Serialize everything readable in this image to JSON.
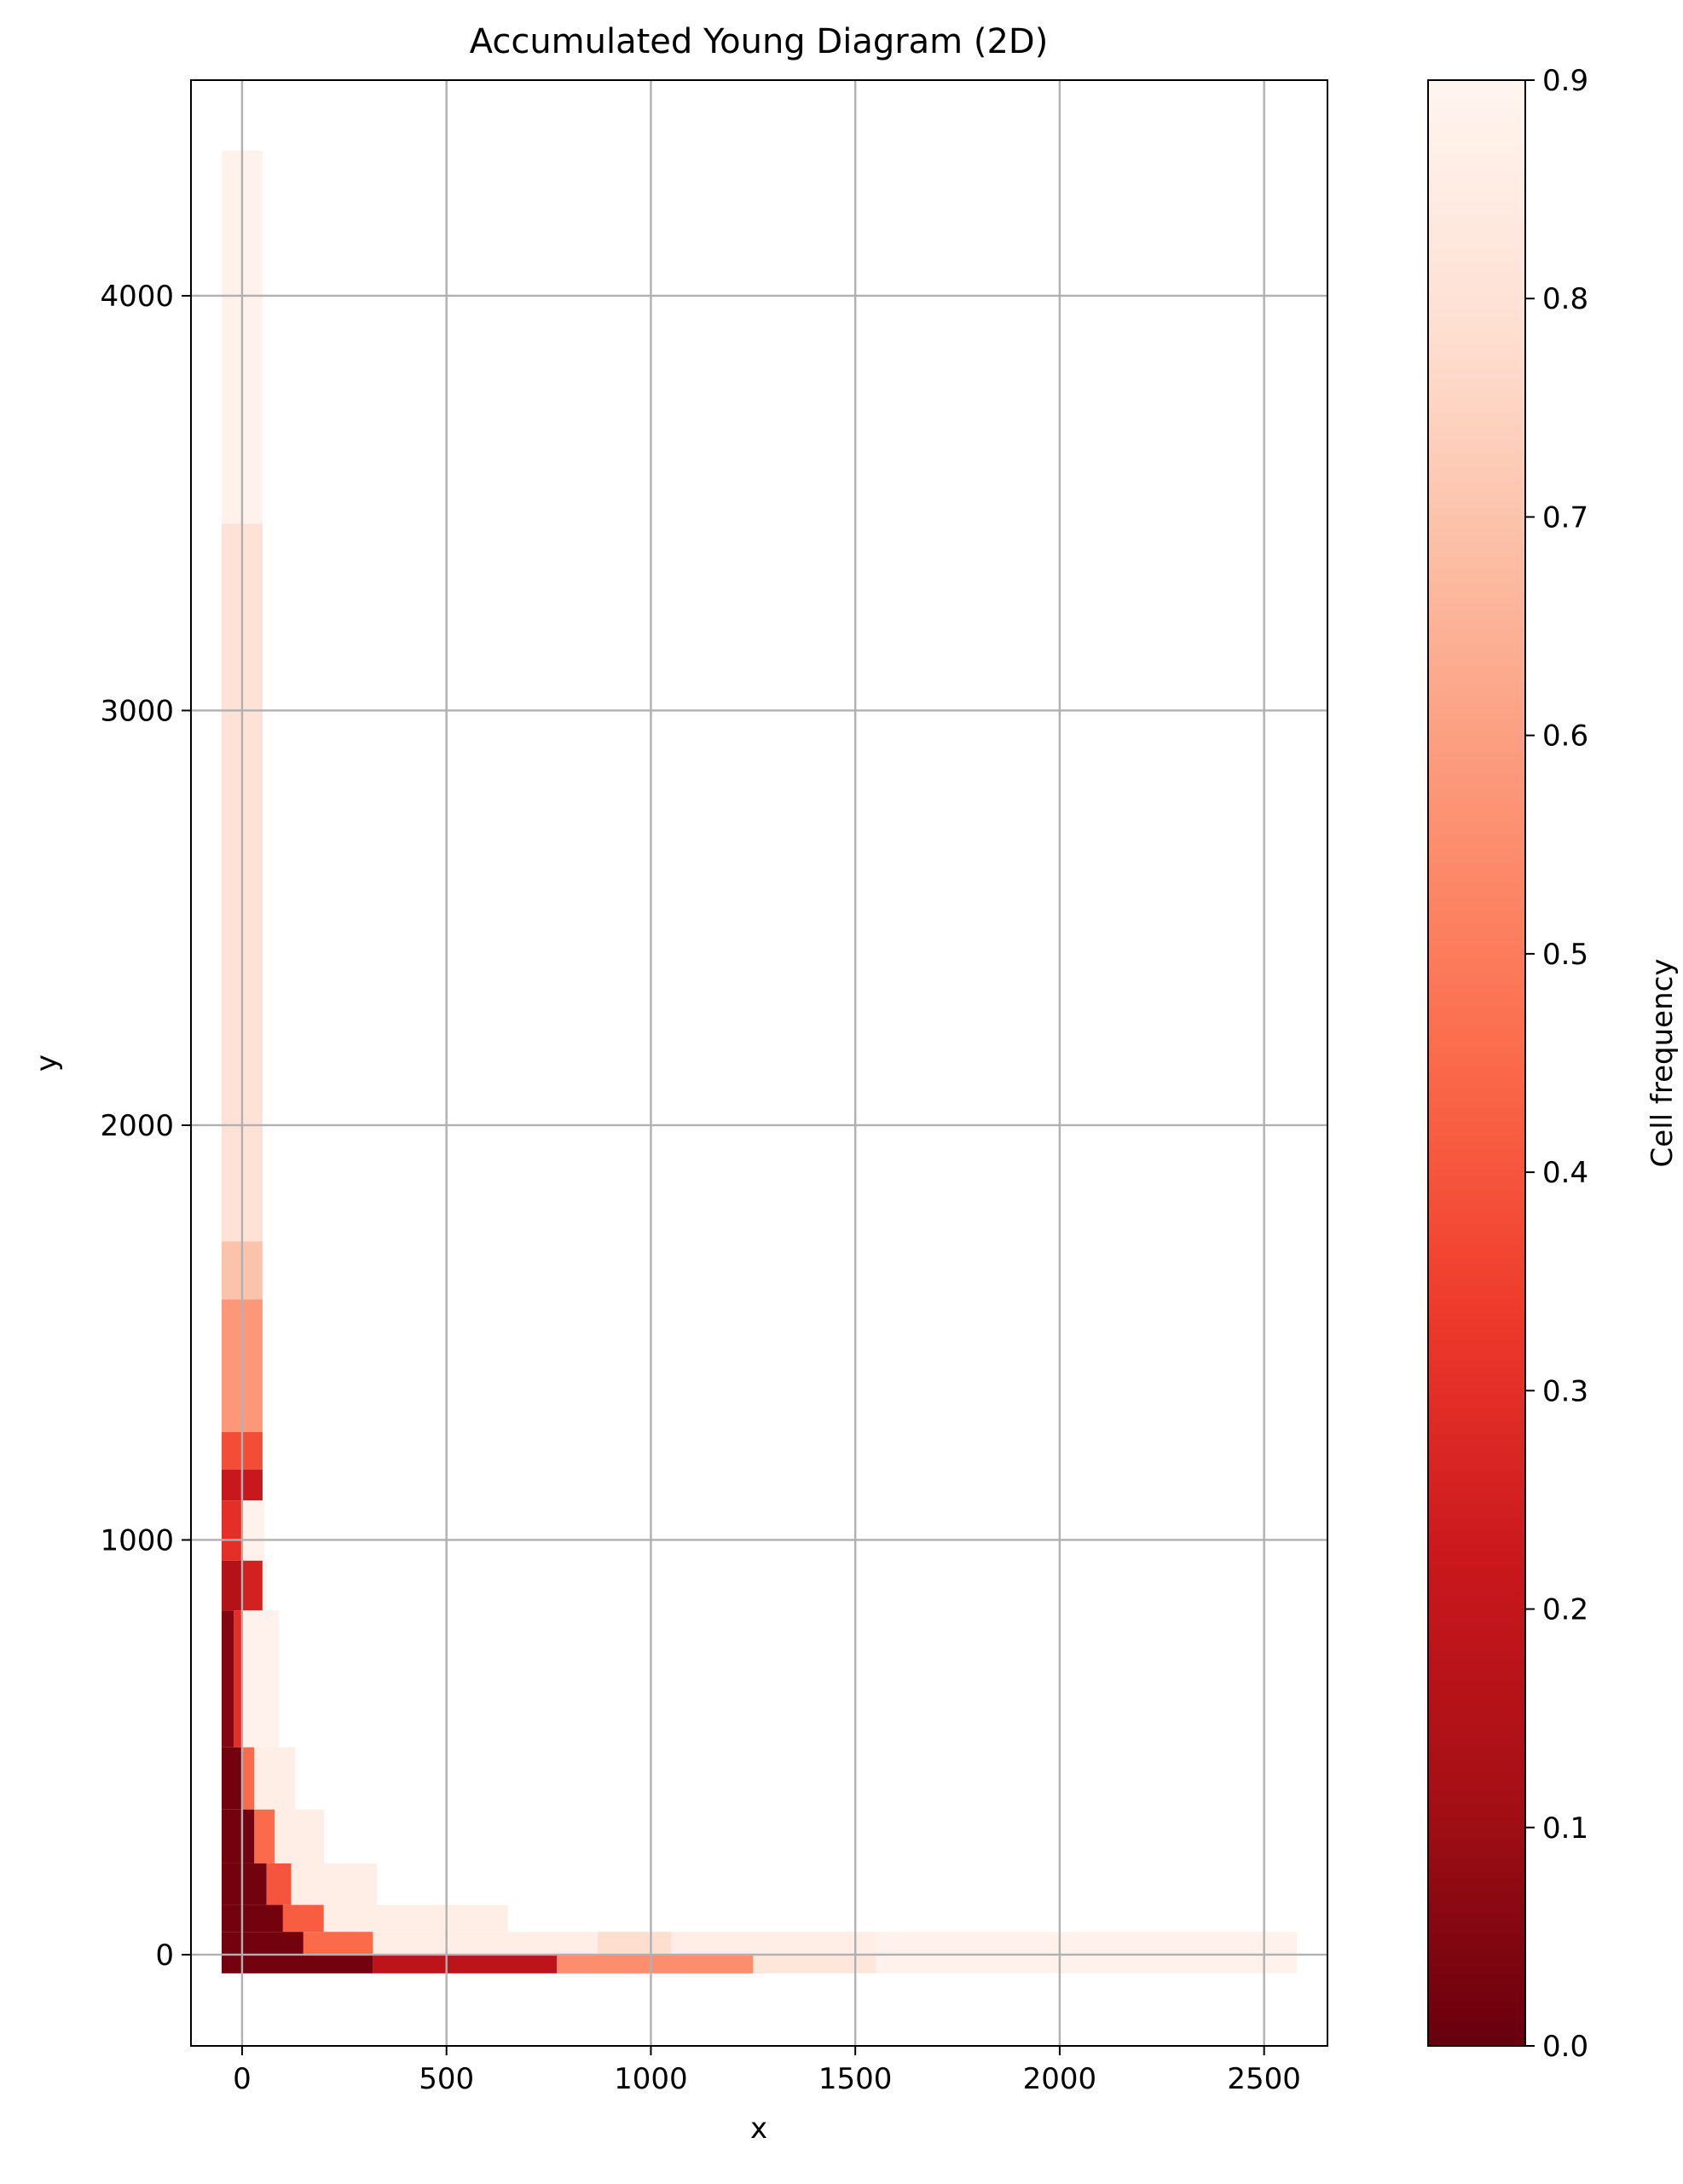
{
  "chart_data": {
    "type": "heatmap",
    "title": "Accumulated Young Diagram (2D)",
    "xlabel": "x",
    "ylabel": "y",
    "xlim": [
      -125,
      2655
    ],
    "ylim": [
      -220,
      4520
    ],
    "xticks": [
      0,
      500,
      1000,
      1500,
      2000,
      2500
    ],
    "yticks": [
      0,
      1000,
      2000,
      3000,
      4000
    ],
    "grid": true,
    "colormap": "Reds_r",
    "colormap_stops": [
      "#67000d",
      "#a50f15",
      "#cb181d",
      "#ef3b2c",
      "#fb6a4a",
      "#fc9272",
      "#fcbba1",
      "#fee0d2",
      "#fff5f0"
    ],
    "colorbar": {
      "label": "Cell frequency",
      "range": [
        0.0,
        0.9
      ],
      "ticks": [
        "0.0",
        "0.1",
        "0.2",
        "0.3",
        "0.4",
        "0.5",
        "0.6",
        "0.7",
        "0.8",
        "0.9"
      ]
    },
    "cells": [
      {
        "x0": -50,
        "x1": 50,
        "y0": 3450,
        "y1": 4350,
        "value": 0.88
      },
      {
        "x0": -50,
        "x1": 50,
        "y0": 1720,
        "y1": 3450,
        "value": 0.8
      },
      {
        "x0": -50,
        "x1": 50,
        "y0": 1580,
        "y1": 1720,
        "value": 0.7
      },
      {
        "x0": -50,
        "x1": 50,
        "y0": 1260,
        "y1": 1580,
        "value": 0.58
      },
      {
        "x0": -50,
        "x1": 50,
        "y0": 1170,
        "y1": 1260,
        "value": 0.38
      },
      {
        "x0": -50,
        "x1": 50,
        "y0": 1095,
        "y1": 1170,
        "value": 0.22
      },
      {
        "x0": -50,
        "x1": 0,
        "y0": 950,
        "y1": 1095,
        "value": 0.3
      },
      {
        "x0": 0,
        "x1": 55,
        "y0": 950,
        "y1": 1095,
        "value": 0.88
      },
      {
        "x0": -50,
        "x1": 0,
        "y0": 830,
        "y1": 950,
        "value": 0.15
      },
      {
        "x0": 0,
        "x1": 50,
        "y0": 830,
        "y1": 950,
        "value": 0.25
      },
      {
        "x0": 50,
        "x1": 60,
        "y0": 830,
        "y1": 950,
        "value": 0.88
      },
      {
        "x0": -50,
        "x1": -20,
        "y0": 500,
        "y1": 830,
        "value": 0.05
      },
      {
        "x0": -20,
        "x1": 0,
        "y0": 500,
        "y1": 830,
        "value": 0.3
      },
      {
        "x0": 0,
        "x1": 90,
        "y0": 500,
        "y1": 830,
        "value": 0.88
      },
      {
        "x0": -50,
        "x1": 0,
        "y0": 350,
        "y1": 500,
        "value": 0.02
      },
      {
        "x0": 0,
        "x1": 30,
        "y0": 350,
        "y1": 500,
        "value": 0.45
      },
      {
        "x0": 30,
        "x1": 130,
        "y0": 350,
        "y1": 500,
        "value": 0.86
      },
      {
        "x0": -50,
        "x1": 30,
        "y0": 220,
        "y1": 350,
        "value": 0.02
      },
      {
        "x0": 30,
        "x1": 80,
        "y0": 220,
        "y1": 350,
        "value": 0.45
      },
      {
        "x0": 80,
        "x1": 200,
        "y0": 220,
        "y1": 350,
        "value": 0.86
      },
      {
        "x0": -50,
        "x1": 60,
        "y0": 120,
        "y1": 220,
        "value": 0.02
      },
      {
        "x0": 60,
        "x1": 120,
        "y0": 120,
        "y1": 220,
        "value": 0.4
      },
      {
        "x0": 120,
        "x1": 330,
        "y0": 120,
        "y1": 220,
        "value": 0.86
      },
      {
        "x0": -50,
        "x1": 100,
        "y0": 55,
        "y1": 120,
        "value": 0.02
      },
      {
        "x0": 100,
        "x1": 200,
        "y0": 55,
        "y1": 120,
        "value": 0.42
      },
      {
        "x0": 200,
        "x1": 650,
        "y0": 55,
        "y1": 120,
        "value": 0.86
      },
      {
        "x0": -50,
        "x1": 150,
        "y0": 0,
        "y1": 55,
        "value": 0.02
      },
      {
        "x0": 150,
        "x1": 320,
        "y0": 0,
        "y1": 55,
        "value": 0.45
      },
      {
        "x0": 320,
        "x1": 870,
        "y0": 0,
        "y1": 55,
        "value": 0.86
      },
      {
        "x0": 870,
        "x1": 1050,
        "y0": 0,
        "y1": 55,
        "value": 0.78
      },
      {
        "x0": 1050,
        "x1": 1550,
        "y0": 0,
        "y1": 55,
        "value": 0.86
      },
      {
        "x0": 1550,
        "x1": 2580,
        "y0": 0,
        "y1": 55,
        "value": 0.88
      },
      {
        "x0": -50,
        "x1": 320,
        "y0": -45,
        "y1": 0,
        "value": 0.02
      },
      {
        "x0": 320,
        "x1": 770,
        "y0": -45,
        "y1": 0,
        "value": 0.18
      },
      {
        "x0": 770,
        "x1": 1250,
        "y0": -45,
        "y1": 0,
        "value": 0.55
      },
      {
        "x0": 1250,
        "x1": 1550,
        "y0": -45,
        "y1": 0,
        "value": 0.82
      },
      {
        "x0": 1550,
        "x1": 2580,
        "y0": -45,
        "y1": 0,
        "value": 0.88
      }
    ]
  }
}
